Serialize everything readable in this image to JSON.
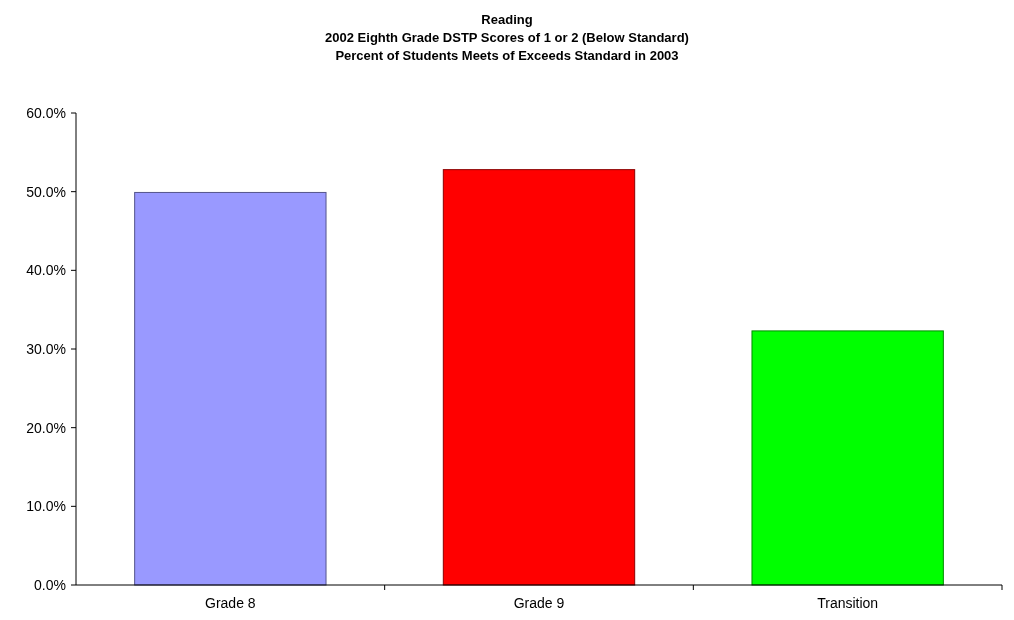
{
  "chart_data": {
    "type": "bar",
    "title": "Reading\n2002 Eighth Grade DSTP Scores of 1 or 2 (Below Standard)\nPercent of Students Meets of Exceeds Standard in 2003",
    "categories": [
      "Grade 8",
      "Grade 9",
      "Transition"
    ],
    "values": [
      49.9,
      52.8,
      32.3
    ],
    "colors": [
      "#9999ff",
      "#ff0000",
      "#00ff00"
    ],
    "ylim": [
      0,
      60
    ],
    "yticks": [
      {
        "value": 0,
        "label": "0.0%"
      },
      {
        "value": 10,
        "label": "10.0%"
      },
      {
        "value": 20,
        "label": "20.0%"
      },
      {
        "value": 30,
        "label": "30.0%"
      },
      {
        "value": 40,
        "label": "40.0%"
      },
      {
        "value": 50,
        "label": "50.0%"
      },
      {
        "value": 60,
        "label": "60.0%"
      }
    ],
    "grid": false
  }
}
